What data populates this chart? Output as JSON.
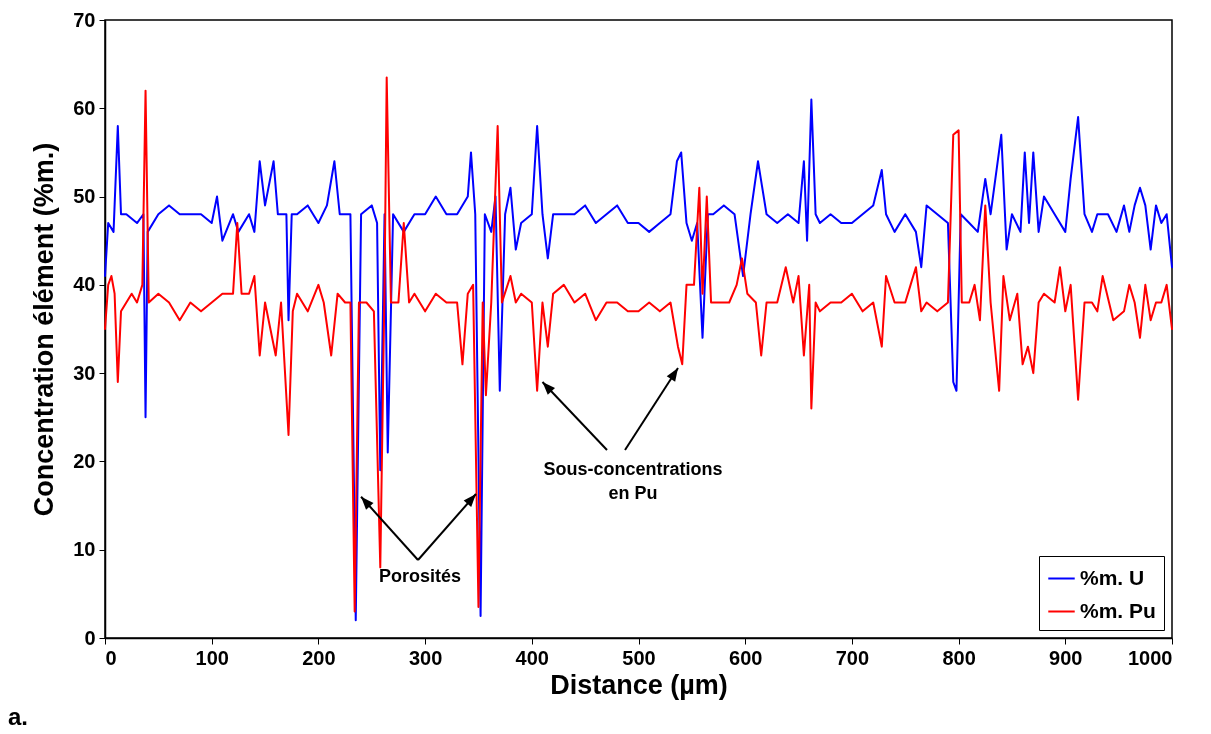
{
  "chart_data": {
    "type": "line",
    "xlabel": "Distance (µm)",
    "ylabel": "Concentration élément (%m.)",
    "xlim": [
      0,
      1000
    ],
    "xticks": [
      0,
      100,
      200,
      300,
      400,
      500,
      600,
      700,
      800,
      900,
      1000
    ],
    "ylim": [
      0,
      70
    ],
    "yticks": [
      0,
      10,
      20,
      30,
      40,
      50,
      60,
      70
    ],
    "grid": false,
    "legend": "bottom right",
    "marker": "none",
    "line_style": "solid",
    "annotations": [
      {
        "text": "Porosités",
        "x": 240,
        "y": 16
      },
      {
        "text": "Sous-concentrations en Pu",
        "x": 410,
        "y": 29
      },
      "a."
    ],
    "series": [
      {
        "name": "%m. U",
        "color": "#0000ff",
        "x": [
          0,
          3,
          8,
          12,
          15,
          20,
          30,
          36,
          38,
          40,
          50,
          60,
          70,
          80,
          90,
          100,
          105,
          110,
          120,
          125,
          135,
          140,
          145,
          150,
          158,
          162,
          170,
          172,
          175,
          180,
          190,
          200,
          208,
          215,
          220,
          230,
          235,
          240,
          250,
          255,
          258,
          262,
          265,
          270,
          280,
          290,
          300,
          310,
          320,
          330,
          340,
          343,
          347,
          352,
          356,
          362,
          366,
          370,
          375,
          380,
          385,
          390,
          400,
          405,
          410,
          415,
          420,
          430,
          440,
          450,
          460,
          470,
          480,
          490,
          500,
          510,
          520,
          530,
          536,
          540,
          545,
          550,
          555,
          560,
          565,
          570,
          580,
          590,
          598,
          605,
          612,
          620,
          630,
          640,
          650,
          655,
          658,
          662,
          666,
          670,
          680,
          690,
          700,
          710,
          720,
          728,
          732,
          740,
          750,
          760,
          765,
          770,
          780,
          790,
          795,
          798,
          802,
          810,
          818,
          825,
          830,
          840,
          845,
          850,
          858,
          862,
          866,
          870,
          875,
          880,
          890,
          900,
          905,
          912,
          918,
          925,
          930,
          940,
          948,
          955,
          960,
          965,
          970,
          975,
          980,
          985,
          990,
          995,
          1000
        ],
        "values": [
          41,
          47,
          46,
          58,
          48,
          48,
          47,
          48,
          25,
          46,
          48,
          49,
          48,
          48,
          48,
          47,
          50,
          45,
          48,
          46,
          48,
          46,
          54,
          49,
          54,
          48,
          48,
          36,
          48,
          48,
          49,
          47,
          49,
          54,
          48,
          48,
          2,
          48,
          49,
          47,
          19,
          48,
          21,
          48,
          46,
          48,
          48,
          50,
          48,
          48,
          50,
          55,
          48,
          2.5,
          48,
          46,
          50,
          28,
          48,
          51,
          44,
          47,
          48,
          58,
          48,
          43,
          48,
          48,
          48,
          49,
          47,
          48,
          49,
          47,
          47,
          46,
          47,
          48,
          54,
          55,
          47,
          45,
          47,
          34,
          48,
          48,
          49,
          48,
          41,
          48,
          54,
          48,
          47,
          48,
          47,
          54,
          45,
          61,
          48,
          47,
          48,
          47,
          47,
          48,
          49,
          53,
          48,
          46,
          48,
          46,
          42,
          49,
          48,
          47,
          29,
          28,
          48,
          47,
          46,
          52,
          48,
          57,
          44,
          48,
          46,
          55,
          47,
          55,
          46,
          50,
          48,
          46,
          52,
          59,
          48,
          46,
          48,
          48,
          46,
          49,
          46,
          49,
          51,
          49,
          44,
          49,
          47,
          48,
          42
        ]
      },
      {
        "name": "%m. Pu",
        "color": "#ff0000",
        "x": [
          0,
          3,
          6,
          9,
          12,
          15,
          20,
          25,
          30,
          35,
          38,
          41,
          50,
          60,
          70,
          80,
          90,
          100,
          110,
          120,
          124,
          128,
          135,
          140,
          145,
          150,
          160,
          165,
          172,
          176,
          180,
          190,
          200,
          205,
          212,
          218,
          225,
          230,
          234,
          238,
          245,
          252,
          258,
          262,
          264,
          268,
          275,
          280,
          285,
          290,
          300,
          310,
          320,
          330,
          335,
          340,
          345,
          350,
          354,
          357,
          362,
          368,
          372,
          380,
          385,
          390,
          400,
          405,
          410,
          415,
          420,
          430,
          440,
          450,
          460,
          470,
          480,
          490,
          500,
          510,
          520,
          530,
          537,
          541,
          545,
          552,
          557,
          560,
          564,
          568,
          575,
          585,
          592,
          597,
          602,
          610,
          615,
          620,
          630,
          638,
          645,
          650,
          655,
          660,
          662,
          666,
          670,
          680,
          690,
          700,
          710,
          720,
          728,
          732,
          740,
          750,
          755,
          760,
          765,
          770,
          780,
          790,
          795,
          800,
          803,
          810,
          815,
          820,
          825,
          830,
          838,
          842,
          848,
          855,
          860,
          865,
          870,
          875,
          880,
          890,
          895,
          900,
          905,
          912,
          918,
          925,
          930,
          935,
          945,
          955,
          960,
          965,
          970,
          975,
          980,
          985,
          990,
          995,
          1000
        ],
        "values": [
          35,
          40,
          41,
          39,
          29,
          37,
          38,
          39,
          38,
          40,
          62,
          38,
          39,
          38,
          36,
          38,
          37,
          38,
          39,
          39,
          47,
          39,
          39,
          41,
          32,
          38,
          32,
          38,
          23,
          37,
          39,
          37,
          40,
          38,
          32,
          39,
          38,
          38,
          3,
          38,
          38,
          37,
          8,
          40,
          63.5,
          38,
          38,
          47,
          38,
          39,
          37,
          39,
          38,
          38,
          31,
          39,
          40,
          3.5,
          38,
          27.5,
          38,
          58,
          38,
          41,
          38,
          39,
          38,
          28,
          38,
          33,
          39,
          40,
          38,
          39,
          36,
          38,
          38,
          37,
          37,
          38,
          37,
          38,
          33,
          31,
          40,
          40,
          51,
          39,
          50,
          38,
          38,
          38,
          40,
          43,
          39,
          38,
          32,
          38,
          38,
          42,
          38,
          41,
          32,
          40,
          26,
          38,
          37,
          38,
          38,
          39,
          37,
          38,
          33,
          41,
          38,
          38,
          40,
          42,
          37,
          38,
          37,
          38,
          57,
          57.5,
          38,
          38,
          40,
          36,
          49,
          38,
          28,
          41,
          36,
          39,
          31,
          33,
          30,
          38,
          39,
          38,
          42,
          37,
          40,
          27,
          38,
          38,
          37,
          41,
          36,
          37,
          40,
          38,
          34,
          40,
          36,
          38,
          38,
          40,
          35
        ]
      }
    ]
  }
}
